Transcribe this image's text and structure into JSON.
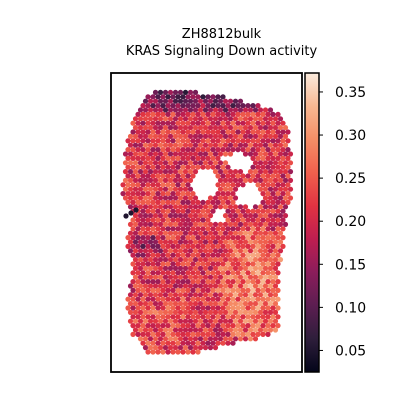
{
  "chart_data": {
    "type": "heatmap",
    "subtype": "spatial-hexbin",
    "title_line1": "ZH8812bulk",
    "title_line2": "KRAS Signaling Down activity",
    "xlabel": "",
    "ylabel": "",
    "colormap": "rocket",
    "color_range": [
      0.025,
      0.372
    ],
    "colorbar_ticks": [
      0.05,
      0.1,
      0.15,
      0.2,
      0.25,
      0.3,
      0.35
    ],
    "colorbar_tick_labels": [
      "0.05",
      "0.10",
      "0.15",
      "0.20",
      "0.25",
      "0.30",
      "0.35"
    ],
    "spot_value_range": [
      0.03,
      0.36
    ],
    "regions": [
      {
        "area": "top edge",
        "level": 0.09
      },
      {
        "area": "upper body",
        "level": 0.21
      },
      {
        "area": "left middle",
        "level": 0.12
      },
      {
        "area": "lower right",
        "level": 0.29
      },
      {
        "area": "bottom left",
        "level": 0.24
      }
    ],
    "axes_visible": false,
    "grid": false,
    "legend": "colorbar-right"
  },
  "colormap_stops": [
    "#03051a",
    "#2e1e3b",
    "#5c1e51",
    "#8b1d5b",
    "#be1e50",
    "#e13342",
    "#f0604d",
    "#f58e66",
    "#f7b892",
    "#faebdd"
  ]
}
